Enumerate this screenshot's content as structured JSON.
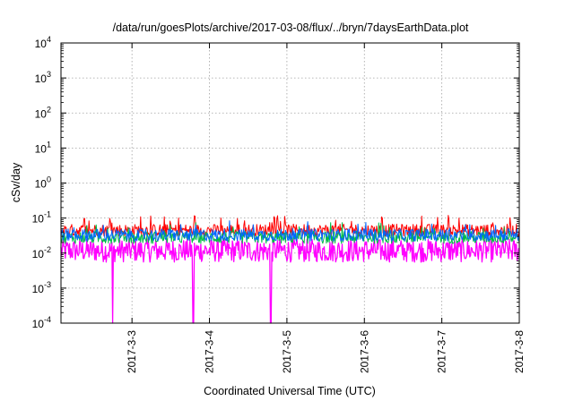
{
  "chart_data": {
    "type": "line",
    "title": "/data/run/goesPlots/archive/2017-03-08/flux/../bryn/7daysEarthData.plot",
    "xlabel": "Coordinated Universal Time (UTC)",
    "ylabel": "cSv/day",
    "yscale": "log",
    "ylim": [
      0.0001,
      10000
    ],
    "y_ticks": [
      {
        "value": 0.0001,
        "base": "10",
        "exp": "-4"
      },
      {
        "value": 0.001,
        "base": "10",
        "exp": "-3"
      },
      {
        "value": 0.01,
        "base": "10",
        "exp": "-2"
      },
      {
        "value": 0.1,
        "base": "10",
        "exp": "-1"
      },
      {
        "value": 1,
        "base": "10",
        "exp": "0"
      },
      {
        "value": 10,
        "base": "10",
        "exp": "1"
      },
      {
        "value": 100,
        "base": "10",
        "exp": "2"
      },
      {
        "value": 1000,
        "base": "10",
        "exp": "3"
      },
      {
        "value": 10000,
        "base": "10",
        "exp": "4"
      }
    ],
    "xlim": [
      "2017-03-02 02:00",
      "2017-03-08 00:00"
    ],
    "x_ticks": [
      {
        "date": "2017-03-03",
        "label": "2017-3-3"
      },
      {
        "date": "2017-03-04",
        "label": "2017-3-4"
      },
      {
        "date": "2017-03-05",
        "label": "2017-3-5"
      },
      {
        "date": "2017-03-06",
        "label": "2017-3-6"
      },
      {
        "date": "2017-03-07",
        "label": "2017-3-7"
      },
      {
        "date": "2017-03-08",
        "label": "2017-3-8"
      }
    ],
    "grid": true,
    "legend": "none",
    "series": [
      {
        "color": "#ff0000",
        "typical": 0.045,
        "peaks_max": 0.12
      },
      {
        "color": "#00bb44",
        "typical": 0.028
      },
      {
        "color": "#0066ff",
        "typical": 0.033
      },
      {
        "color": "#ff00ff",
        "typical": 0.011,
        "low": 0.0055,
        "dropouts": [
          "2017-03-02 18:00",
          "2017-03-03 19:00",
          "2017-03-04 19:00"
        ]
      }
    ]
  }
}
